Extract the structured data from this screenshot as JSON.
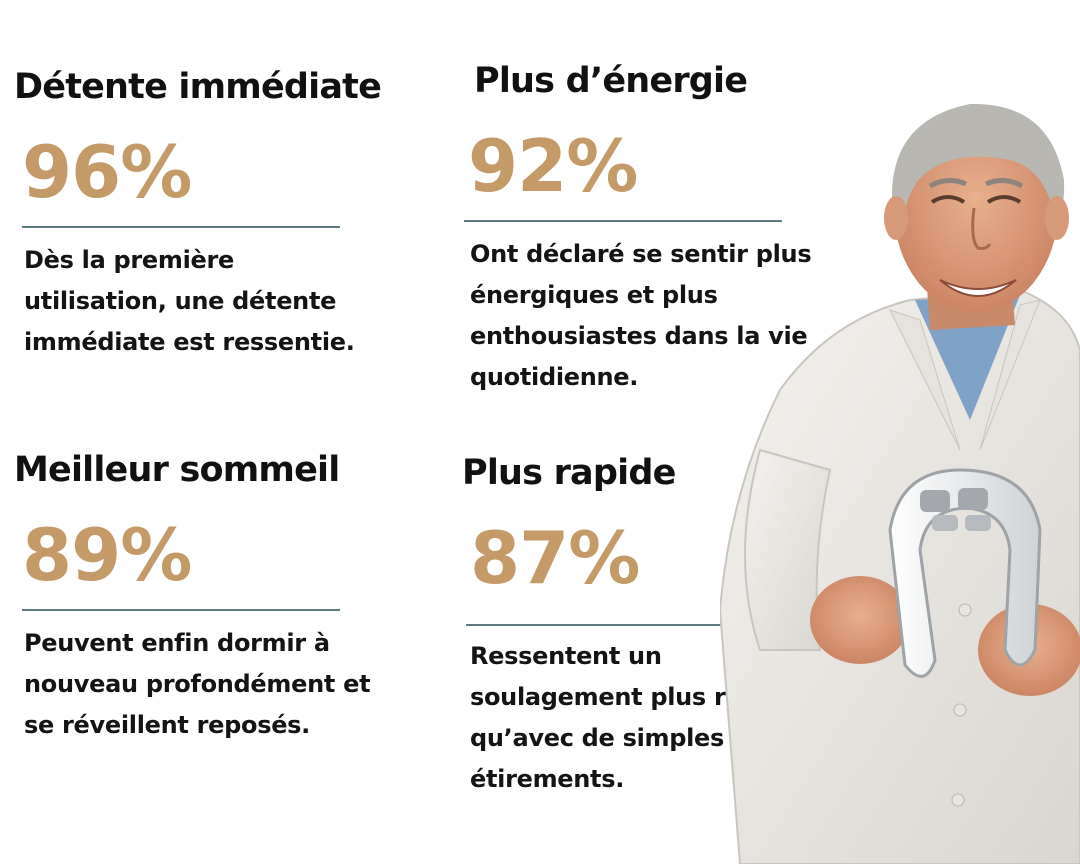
{
  "colors": {
    "percent": "#c49a68",
    "rule": "#5c7a80",
    "text": "#141414"
  },
  "stats": [
    {
      "title": "Détente immédiate",
      "percent": "96%",
      "description": "Dès la première utilisation, une détente immédiate est ressentie."
    },
    {
      "title": "Plus d’énergie",
      "percent": "92%",
      "description": "Ont déclaré se sentir plus énergiques et plus enthousiastes dans la vie quotidienne."
    },
    {
      "title": "Meilleur sommeil",
      "percent": "89%",
      "description": "Peuvent enfin dormir à nouveau profondément et se réveillent reposés."
    },
    {
      "title": "Plus rapide",
      "percent": "87%",
      "description": "Ressentent un soulagement plus rapide qu’avec de simples étirements."
    }
  ],
  "image": {
    "subject": "doctor-holding-neck-massager-illustration"
  }
}
